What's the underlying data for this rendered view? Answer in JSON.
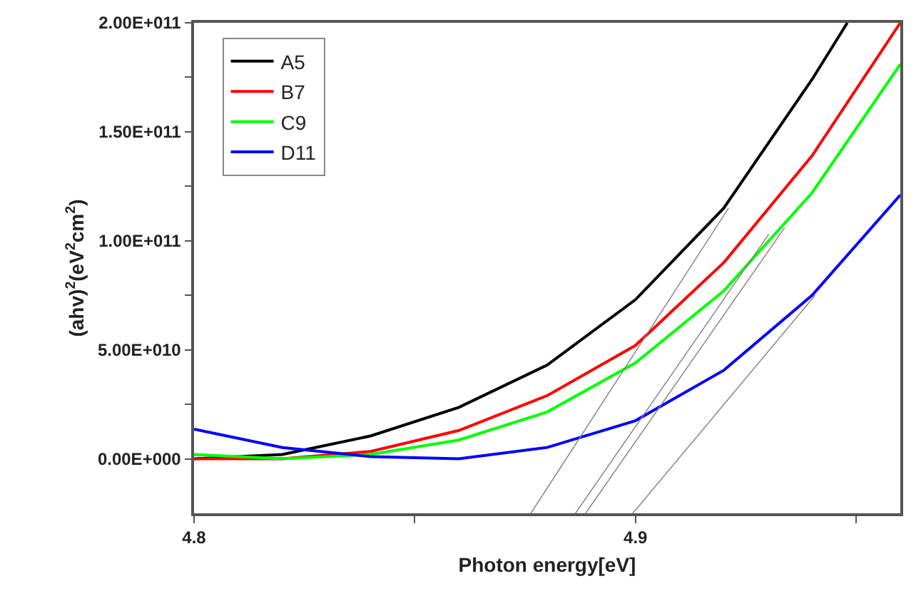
{
  "chart_data": {
    "type": "line",
    "xlabel": "Photon energy[eV]",
    "ylabel": "(ahv)$^{2}$(eV$^{2}$cm$^{2}$)",
    "x": [
      4.8,
      4.82,
      4.84,
      4.86,
      4.88,
      4.9,
      4.92,
      4.94,
      4.96
    ],
    "xlim": [
      4.8,
      4.96
    ],
    "xticks": [
      {
        "value": 4.8,
        "label": "4.8"
      },
      {
        "value": 4.85,
        "label": null
      },
      {
        "value": 4.9,
        "label": "4.9"
      },
      {
        "value": 4.95,
        "label": null
      }
    ],
    "ylim": [
      -25000000000.0,
      200000000000.0
    ],
    "yticks": [
      {
        "value": 0,
        "label": "0.00E+000"
      },
      {
        "value": 25000000000.0,
        "label": null
      },
      {
        "value": 50000000000.0,
        "label": "5.00E+010"
      },
      {
        "value": 75000000000.0,
        "label": null
      },
      {
        "value": 100000000000.0,
        "label": "1.00E+011"
      },
      {
        "value": 125000000000.0,
        "label": null
      },
      {
        "value": 150000000000.0,
        "label": "1.50E+011"
      },
      {
        "value": 175000000000.0,
        "label": null
      },
      {
        "value": 200000000000.0,
        "label": "2.00E+011"
      }
    ],
    "legend": "top left",
    "marker": "none",
    "line_style": "solid",
    "series": [
      {
        "name": "A5",
        "color": "#000000",
        "x": [
          4.8,
          4.82,
          4.84,
          4.86,
          4.88,
          4.9,
          4.92,
          4.94,
          4.948
        ],
        "values": [
          0,
          2000000000.0,
          10500000000.0,
          23600000000.0,
          43000000000.0,
          73000000000.0,
          115000000000.0,
          174000000000.0,
          200000000000.0
        ]
      },
      {
        "name": "B7",
        "color": "#ff0000",
        "values": [
          0,
          0,
          3400000000.0,
          13000000000.0,
          29000000000.0,
          52000000000.0,
          90000000000.0,
          139000000000.0,
          200000000000.0
        ]
      },
      {
        "name": "C9",
        "color": "#00ff00",
        "values": [
          2000000000.0,
          0,
          2000000000.0,
          8600000000.0,
          21500000000.0,
          44000000000.0,
          77000000000.0,
          122000000000.0,
          181000000000.0
        ]
      },
      {
        "name": "D11",
        "color": "#0000ff",
        "values": [
          13600000000.0,
          5200000000.0,
          1000000000.0,
          0,
          5200000000.0,
          17500000000.0,
          40600000000.0,
          75000000000.0,
          121000000000.0
        ]
      },
      {
        "color": "#808080",
        "x": [
          4.8763,
          4.9211
        ],
        "values": [
          -25000000000.0,
          115000000000.0
        ]
      },
      {
        "color": "#808080",
        "x": [
          4.8864,
          4.9302
        ],
        "values": [
          -25000000000.0,
          103000000000.0
        ]
      },
      {
        "color": "#808080",
        "x": [
          4.8887,
          4.9338
        ],
        "values": [
          -25000000000.0,
          106000000000.0
        ]
      },
      {
        "color": "#808080",
        "x": [
          4.8994,
          4.9407
        ],
        "values": [
          -25000000000.0,
          75000000000.0
        ]
      }
    ]
  }
}
